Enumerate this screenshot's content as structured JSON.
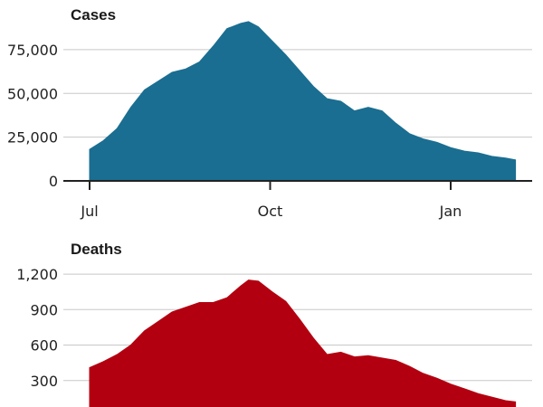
{
  "chart_data": [
    {
      "type": "area",
      "title": "Cases",
      "xlabel": "",
      "ylabel": "",
      "ylim": [
        0,
        92000
      ],
      "y_ticks": [
        0,
        25000,
        50000,
        75000
      ],
      "y_tick_labels": [
        "0",
        "25,000",
        "50,000",
        "75,000"
      ],
      "x_ticks": [
        "2021-07-01",
        "2021-10-01",
        "2022-01-01"
      ],
      "x_tick_labels": [
        "Jul",
        "Oct",
        "Jan"
      ],
      "grid": true,
      "color": "#1a6e91",
      "series": [
        {
          "x": [
            "2021-07-01",
            "2021-07-08",
            "2021-07-15",
            "2021-07-22",
            "2021-07-29",
            "2021-08-05",
            "2021-08-12",
            "2021-08-19",
            "2021-08-26",
            "2021-09-02",
            "2021-09-09",
            "2021-09-16",
            "2021-09-20",
            "2021-09-25",
            "2021-10-02",
            "2021-10-09",
            "2021-10-16",
            "2021-10-23",
            "2021-10-30",
            "2021-11-06",
            "2021-11-13",
            "2021-11-20",
            "2021-11-27",
            "2021-12-04",
            "2021-12-11",
            "2021-12-18",
            "2021-12-25",
            "2022-01-01",
            "2022-01-08",
            "2022-01-15",
            "2022-01-22",
            "2022-01-29",
            "2022-02-03"
          ],
          "values": [
            18000,
            23000,
            30000,
            42000,
            52000,
            57000,
            62000,
            64000,
            68000,
            77000,
            87000,
            90000,
            91000,
            88000,
            80000,
            72000,
            63000,
            54000,
            47000,
            45500,
            40000,
            42000,
            40000,
            33000,
            27000,
            24000,
            22000,
            19000,
            17000,
            16000,
            14000,
            13000,
            12000
          ]
        }
      ]
    },
    {
      "type": "area",
      "title": "Deaths",
      "xlabel": "",
      "ylabel": "",
      "ylim": [
        0,
        1300
      ],
      "y_ticks": [
        300,
        600,
        900,
        1200
      ],
      "y_tick_labels": [
        "300",
        "600",
        "900",
        "1,200"
      ],
      "grid": true,
      "color": "#b30010",
      "series": [
        {
          "x": [
            "2021-07-01",
            "2021-07-08",
            "2021-07-15",
            "2021-07-22",
            "2021-07-29",
            "2021-08-05",
            "2021-08-12",
            "2021-08-19",
            "2021-08-26",
            "2021-09-02",
            "2021-09-09",
            "2021-09-16",
            "2021-09-20",
            "2021-09-25",
            "2021-10-02",
            "2021-10-09",
            "2021-10-16",
            "2021-10-23",
            "2021-10-30",
            "2021-11-06",
            "2021-11-13",
            "2021-11-20",
            "2021-11-27",
            "2021-12-04",
            "2021-12-11",
            "2021-12-18",
            "2021-12-25",
            "2022-01-01",
            "2022-01-08",
            "2022-01-15",
            "2022-01-22",
            "2022-01-29",
            "2022-02-03"
          ],
          "values": [
            410,
            460,
            520,
            600,
            720,
            800,
            880,
            920,
            960,
            960,
            1000,
            1100,
            1150,
            1140,
            1050,
            970,
            820,
            660,
            520,
            540,
            500,
            510,
            490,
            470,
            420,
            360,
            320,
            270,
            230,
            190,
            160,
            130,
            120
          ]
        }
      ]
    }
  ]
}
